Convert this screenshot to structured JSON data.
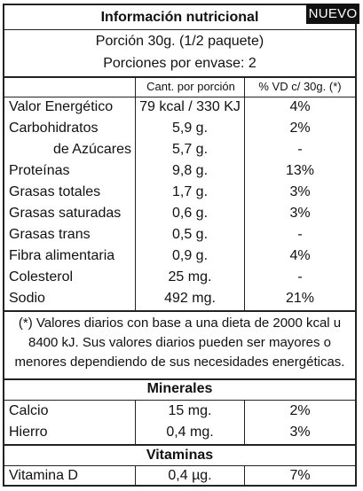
{
  "badge": "NUEVO",
  "title": "Información nutricional",
  "portion": "Porción 30g. (1/2 paquete)",
  "servings": "Porciones por envase: 2",
  "headers": {
    "amount": "Cant. por porción",
    "dv": "% VD c/ 30g. (*)"
  },
  "rows": [
    {
      "name": "Valor Energético",
      "amount": "79 kcal / 330 KJ",
      "dv": "4%"
    },
    {
      "name": "Carbohidratos",
      "amount": "5,9 g.",
      "dv": "2%"
    },
    {
      "name": "de Azúcares",
      "amount": "5,7 g.",
      "dv": "-"
    },
    {
      "name": "Proteínas",
      "amount": "9,8 g.",
      "dv": "13%"
    },
    {
      "name": "Grasas totales",
      "amount": "1,7 g.",
      "dv": "3%"
    },
    {
      "name": "Grasas saturadas",
      "amount": "0,6 g.",
      "dv": "3%"
    },
    {
      "name": "Grasas trans",
      "amount": "0,5 g.",
      "dv": "-"
    },
    {
      "name": "Fibra alimentaria",
      "amount": "0,9 g.",
      "dv": "4%"
    },
    {
      "name": "Colesterol",
      "amount": "25 mg.",
      "dv": "-"
    },
    {
      "name": "Sodio",
      "amount": "492 mg.",
      "dv": "21%"
    }
  ],
  "note": "(*) Valores diarios con base a una dieta de 2000 kcal u 8400 kJ. Sus valores diarios pueden ser mayores o menores dependiendo de sus necesidades energéticas.",
  "minerals": {
    "title": "Minerales",
    "rows": [
      {
        "name": "Calcio",
        "amount": "15 mg.",
        "dv": "2%"
      },
      {
        "name": "Hierro",
        "amount": "0,4 mg.",
        "dv": "3%"
      }
    ]
  },
  "vitamins": {
    "title": "Vitaminas",
    "rows": [
      {
        "name": "Vitamina D",
        "amount": "0,4 µg.",
        "dv": "7%"
      }
    ]
  }
}
